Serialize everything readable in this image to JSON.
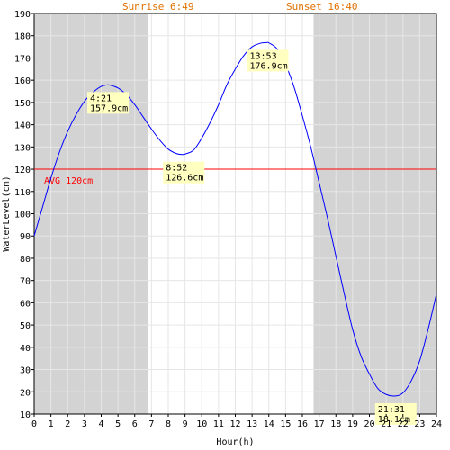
{
  "chart_data": {
    "type": "line",
    "xlabel": "Hour(h)",
    "ylabel": "WaterLevel(cm)",
    "xlim": [
      0,
      24
    ],
    "ylim": [
      10,
      190
    ],
    "x_ticks": [
      0,
      1,
      2,
      3,
      4,
      5,
      6,
      7,
      8,
      9,
      10,
      11,
      12,
      13,
      14,
      15,
      16,
      17,
      18,
      19,
      20,
      21,
      22,
      23,
      24
    ],
    "y_ticks": [
      10,
      20,
      30,
      40,
      50,
      60,
      70,
      80,
      90,
      100,
      110,
      120,
      130,
      140,
      150,
      160,
      170,
      180,
      190
    ],
    "grid": true,
    "colors": {
      "line": "#0000ff",
      "avg_line": "#ff0000",
      "night_shade": "#d3d3d3",
      "grid": "#e6e6e6",
      "sun_text": "#e07000",
      "annotation_bg": "#ffffc0",
      "avg_text": "#ff0000"
    },
    "sunrise": {
      "label": "Sunrise 6:49",
      "hour": 6.82
    },
    "sunset": {
      "label": "Sunset 16:40",
      "hour": 16.67
    },
    "average": {
      "label": "AVG 120cm",
      "value": 120
    },
    "series": [
      {
        "x": [
          0,
          0.5,
          1,
          1.5,
          2,
          2.5,
          3,
          3.5,
          4,
          4.35,
          4.5,
          5,
          5.5,
          6,
          6.5,
          7,
          7.5,
          8,
          8.5,
          8.87,
          9,
          9.5,
          10,
          10.5,
          11,
          11.5,
          12,
          12.5,
          13,
          13.5,
          13.88,
          14,
          14.5,
          15,
          15.5,
          16,
          16.5,
          17,
          17.5,
          18,
          18.5,
          19,
          19.5,
          20,
          20.5,
          21,
          21.52,
          22,
          22.5,
          23,
          23.5,
          24
        ],
        "y": [
          90,
          103,
          116,
          127.5,
          137,
          144.5,
          150.5,
          154.5,
          157.2,
          157.9,
          157.8,
          156.5,
          153.5,
          149,
          143.5,
          138,
          133,
          129,
          127,
          126.6,
          126.8,
          128.5,
          134,
          141,
          149,
          158,
          165,
          171,
          175,
          176.6,
          176.9,
          176.8,
          174,
          167,
          157,
          144,
          130,
          114,
          98,
          81,
          64,
          48,
          36,
          28,
          21.5,
          18.8,
          18.1,
          19.5,
          25,
          34,
          48,
          64
        ]
      }
    ],
    "annotations": [
      {
        "time": "4:21",
        "value": "157.9cm",
        "x": 4.35,
        "y": 157.9
      },
      {
        "time": "8:52",
        "value": "126.6cm",
        "x": 8.87,
        "y": 126.6
      },
      {
        "time": "13:53",
        "value": "176.9cm",
        "x": 13.88,
        "y": 176.9
      },
      {
        "time": "21:31",
        "value": "18.1cm",
        "x": 21.52,
        "y": 18.1
      }
    ]
  }
}
